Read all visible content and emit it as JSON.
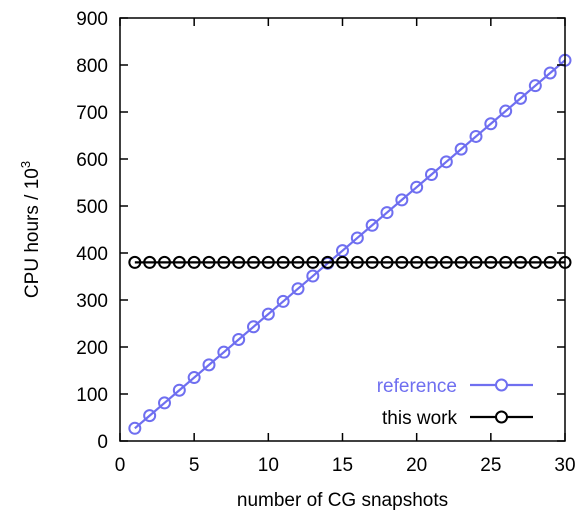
{
  "chart_data": {
    "type": "line",
    "xlabel": "number of CG snapshots",
    "ylabel": "CPU hours / 10",
    "ylabel_exponent": "3",
    "xlim": [
      0,
      30
    ],
    "ylim": [
      0,
      900
    ],
    "xticks": [
      0,
      5,
      10,
      15,
      20,
      25,
      30
    ],
    "yticks": [
      0,
      100,
      200,
      300,
      400,
      500,
      600,
      700,
      800,
      900
    ],
    "grid": false,
    "legend_position": "bottom-right",
    "series": [
      {
        "name": "reference",
        "color": "#6f6ff0",
        "marker": "open-circle",
        "x": [
          1,
          2,
          3,
          4,
          5,
          6,
          7,
          8,
          9,
          10,
          11,
          12,
          13,
          14,
          15,
          16,
          17,
          18,
          19,
          20,
          21,
          22,
          23,
          24,
          25,
          26,
          27,
          28,
          29,
          30
        ],
        "y": [
          27,
          54,
          81,
          108,
          135,
          162,
          189,
          216,
          243,
          270,
          297,
          324,
          351,
          378,
          405,
          432,
          459,
          486,
          513,
          540,
          567,
          594,
          621,
          648,
          675,
          702,
          729,
          756,
          783,
          810
        ]
      },
      {
        "name": "this work",
        "color": "#000000",
        "marker": "open-circle",
        "x": [
          1,
          2,
          3,
          4,
          5,
          6,
          7,
          8,
          9,
          10,
          11,
          12,
          13,
          14,
          15,
          16,
          17,
          18,
          19,
          20,
          21,
          22,
          23,
          24,
          25,
          26,
          27,
          28,
          29,
          30
        ],
        "y": [
          380,
          380,
          380,
          380,
          380,
          380,
          380,
          380,
          380,
          380,
          380,
          380,
          380,
          380,
          380,
          380,
          380,
          380,
          380,
          380,
          380,
          380,
          380,
          380,
          380,
          380,
          380,
          380,
          380,
          380
        ]
      }
    ]
  }
}
